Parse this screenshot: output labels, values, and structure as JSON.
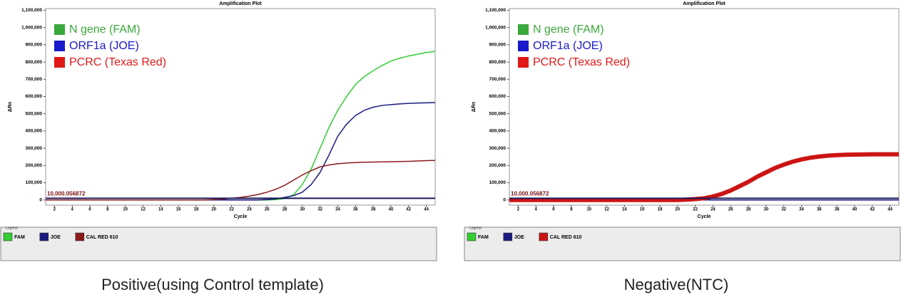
{
  "chart_data": [
    {
      "type": "line",
      "title": "Amplification Plot",
      "x_label": "Cycle",
      "y_label": "ΔRn",
      "caption": "Positive(using Control template)",
      "legend_title": "Legend",
      "threshold": {
        "value": 10000.056872,
        "label": "10,000.056872",
        "color": "#1a1a5a"
      },
      "annotations": [
        {
          "text": "N gene (FAM)",
          "color": "#3aa83a"
        },
        {
          "text": "ORF1a (JOE)",
          "color": "#1a1acc"
        },
        {
          "text": "PCRC (Texas Red)",
          "color": "#e01818"
        }
      ],
      "x": [
        1,
        2,
        3,
        4,
        5,
        6,
        7,
        8,
        9,
        10,
        11,
        12,
        13,
        14,
        15,
        16,
        17,
        18,
        19,
        20,
        21,
        22,
        23,
        24,
        25,
        26,
        27,
        28,
        29,
        30,
        31,
        32,
        33,
        34,
        35,
        36,
        37,
        38,
        39,
        40,
        41,
        42,
        43,
        44,
        45
      ],
      "xlim": [
        1,
        45
      ],
      "xticks": [
        2,
        4,
        6,
        8,
        10,
        12,
        14,
        16,
        18,
        20,
        22,
        24,
        26,
        28,
        30,
        32,
        34,
        36,
        38,
        40,
        42,
        44
      ],
      "ylim": [
        -30000,
        1110000
      ],
      "yticks": [
        0,
        {
          "value": 100000,
          "label": "100,000"
        },
        {
          "value": 200000,
          "label": "200,000"
        },
        {
          "value": 300000,
          "label": "300,000"
        },
        {
          "value": 400000,
          "label": "400,000"
        },
        {
          "value": 500000,
          "label": "500,000"
        },
        {
          "value": 600000,
          "label": "600,000"
        },
        {
          "value": 700000,
          "label": "700,000"
        },
        {
          "value": 800000,
          "label": "800,000"
        },
        {
          "value": 900000,
          "label": "900,000"
        },
        {
          "value": 1000000,
          "label": "1,000,000"
        },
        {
          "value": 1100000,
          "label": "1,100,000"
        }
      ],
      "series": [
        {
          "name": "FAM",
          "color": "#33cc33",
          "values": [
            0,
            0,
            0,
            0,
            0,
            0,
            0,
            0,
            0,
            0,
            0,
            0,
            0,
            0,
            0,
            0,
            0,
            0,
            0,
            0,
            0,
            0,
            0,
            0,
            0,
            0,
            2000,
            8000,
            30000,
            90000,
            180000,
            300000,
            420000,
            520000,
            600000,
            670000,
            715000,
            750000,
            780000,
            805000,
            822000,
            835000,
            845000,
            855000,
            862000
          ]
        },
        {
          "name": "JOE",
          "color": "#1a1a80",
          "values": [
            0,
            0,
            0,
            0,
            0,
            0,
            0,
            0,
            0,
            0,
            0,
            0,
            0,
            0,
            0,
            0,
            0,
            0,
            0,
            0,
            0,
            0,
            0,
            0,
            0,
            2000,
            6000,
            15000,
            25000,
            45000,
            90000,
            160000,
            260000,
            370000,
            440000,
            490000,
            520000,
            538000,
            548000,
            553000,
            557000,
            560000,
            562000,
            563000,
            565000
          ]
        },
        {
          "name": "CAL RED 610",
          "color": "#8b1a1a",
          "values": [
            0,
            0,
            0,
            0,
            0,
            0,
            0,
            0,
            0,
            0,
            0,
            0,
            0,
            0,
            0,
            0,
            0,
            0,
            0,
            2000,
            5000,
            10000,
            15000,
            22000,
            32000,
            45000,
            62000,
            85000,
            115000,
            145000,
            170000,
            192000,
            203000,
            210000,
            214000,
            217000,
            219000,
            220000,
            221000,
            222000,
            223000,
            224000,
            226000,
            228000,
            229000
          ]
        }
      ]
    },
    {
      "type": "line",
      "title": "Amplification Plot",
      "x_label": "Cycle",
      "y_label": "ΔRn",
      "caption": "Negative(NTC)",
      "legend_title": "Legend",
      "threshold": {
        "value": 10000.056872,
        "label": "10,000.056872",
        "color": "#1a1a5a"
      },
      "annotations": [
        {
          "text": "N gene (FAM)",
          "color": "#3aa83a"
        },
        {
          "text": "ORF1a (JOE)",
          "color": "#1a1acc"
        },
        {
          "text": "PCRC (Texas Red)",
          "color": "#e01818"
        }
      ],
      "x": [
        1,
        2,
        3,
        4,
        5,
        6,
        7,
        8,
        9,
        10,
        11,
        12,
        13,
        14,
        15,
        16,
        17,
        18,
        19,
        20,
        21,
        22,
        23,
        24,
        25,
        26,
        27,
        28,
        29,
        30,
        31,
        32,
        33,
        34,
        35,
        36,
        37,
        38,
        39,
        40,
        41,
        42,
        43,
        44,
        45
      ],
      "xlim": [
        1,
        45
      ],
      "xticks": [
        2,
        4,
        6,
        8,
        10,
        12,
        14,
        16,
        18,
        20,
        22,
        24,
        26,
        28,
        30,
        32,
        34,
        36,
        38,
        40,
        42,
        44
      ],
      "ylim": [
        -30000,
        1110000
      ],
      "yticks": [
        0,
        {
          "value": 100000,
          "label": "100,000"
        },
        {
          "value": 200000,
          "label": "200,000"
        },
        {
          "value": 300000,
          "label": "300,000"
        },
        {
          "value": 400000,
          "label": "400,000"
        },
        {
          "value": 500000,
          "label": "500,000"
        },
        {
          "value": 600000,
          "label": "600,000"
        },
        {
          "value": 700000,
          "label": "700,000"
        },
        {
          "value": 800000,
          "label": "800,000"
        },
        {
          "value": 900000,
          "label": "900,000"
        },
        {
          "value": 1000000,
          "label": "1,000,000"
        },
        {
          "value": 1100000,
          "label": "1,100,000"
        }
      ],
      "series": [
        {
          "name": "FAM",
          "color": "#33cc33",
          "values": [
            0,
            0,
            0,
            0,
            0,
            0,
            0,
            0,
            0,
            0,
            0,
            0,
            0,
            0,
            0,
            0,
            0,
            0,
            0,
            0,
            0,
            0,
            0,
            0,
            0,
            0,
            0,
            0,
            0,
            0,
            0,
            0,
            0,
            0,
            0,
            0,
            0,
            0,
            0,
            0,
            0,
            0,
            0,
            0,
            0
          ]
        },
        {
          "name": "JOE",
          "color": "#1a1a80",
          "values": [
            0,
            0,
            0,
            0,
            0,
            0,
            0,
            0,
            0,
            0,
            0,
            0,
            0,
            0,
            0,
            0,
            0,
            0,
            0,
            0,
            0,
            0,
            0,
            0,
            0,
            0,
            0,
            0,
            0,
            0,
            0,
            0,
            0,
            0,
            0,
            0,
            0,
            0,
            0,
            0,
            0,
            0,
            0,
            0,
            0
          ]
        },
        {
          "name": "CAL RED 610",
          "color": "#cc1414",
          "values": [
            0,
            0,
            0,
            0,
            0,
            0,
            0,
            0,
            0,
            0,
            0,
            0,
            0,
            0,
            0,
            0,
            0,
            0,
            0,
            0,
            2000,
            5000,
            10000,
            20000,
            35000,
            55000,
            80000,
            105000,
            135000,
            160000,
            185000,
            205000,
            222000,
            235000,
            245000,
            252000,
            257000,
            260000,
            262000,
            263000,
            264000,
            265000,
            265000,
            265000,
            265000
          ]
        }
      ]
    }
  ]
}
